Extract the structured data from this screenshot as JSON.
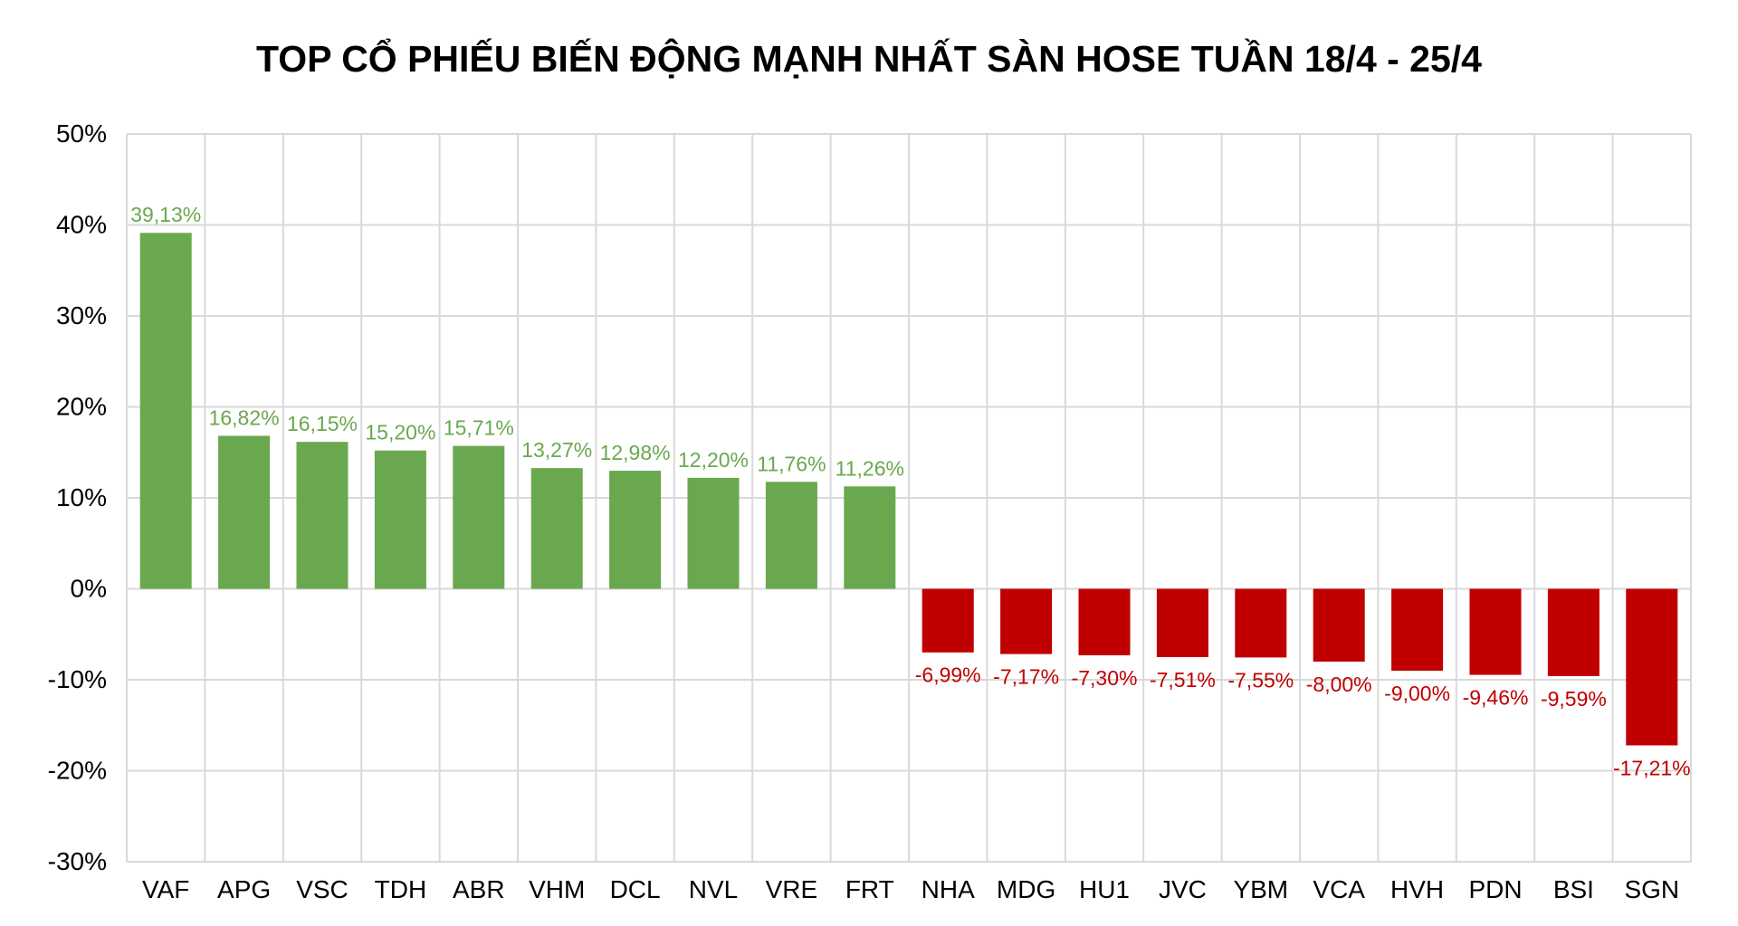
{
  "chart_data": {
    "type": "bar",
    "title": "TOP CỔ PHIẾU BIẾN ĐỘNG MẠNH NHẤT SÀN HOSE TUẦN 18/4 - 25/4",
    "categories": [
      "VAF",
      "APG",
      "VSC",
      "TDH",
      "ABR",
      "VHM",
      "DCL",
      "NVL",
      "VRE",
      "FRT",
      "NHA",
      "MDG",
      "HU1",
      "JVC",
      "YBM",
      "VCA",
      "HVH",
      "PDN",
      "BSI",
      "SGN"
    ],
    "values": [
      39.13,
      16.82,
      16.15,
      15.2,
      15.71,
      13.27,
      12.98,
      12.2,
      11.76,
      11.26,
      -6.99,
      -7.17,
      -7.3,
      -7.51,
      -7.55,
      -8.0,
      -9.0,
      -9.46,
      -9.59,
      -17.21
    ],
    "value_labels": [
      "39,13%",
      "16,82%",
      "16,15%",
      "15,20%",
      "15,71%",
      "13,27%",
      "12,98%",
      "12,20%",
      "11,76%",
      "11,26%",
      "-6,99%",
      "-7,17%",
      "-7,30%",
      "-7,51%",
      "-7,55%",
      "-8,00%",
      "-9,00%",
      "-9,46%",
      "-9,59%",
      "-17,21%"
    ],
    "xlabel": "",
    "ylabel": "",
    "ylim": [
      -30,
      50
    ],
    "yticks": [
      {
        "value": 50,
        "label": "50%"
      },
      {
        "value": 40,
        "label": "40%"
      },
      {
        "value": 30,
        "label": "30%"
      },
      {
        "value": 20,
        "label": "20%"
      },
      {
        "value": 10,
        "label": "10%"
      },
      {
        "value": 0,
        "label": "0%"
      },
      {
        "value": -10,
        "label": "-10%"
      },
      {
        "value": -20,
        "label": "-20%"
      },
      {
        "value": -30,
        "label": "-30%"
      }
    ],
    "grid": {
      "horizontal": true,
      "vertical": true,
      "color": "#d9d9d9"
    },
    "legend": {
      "visible": false
    },
    "colors": {
      "positive_bar": "#6aa84f",
      "negative_bar": "#c00000",
      "positive_label": "#6aa84f",
      "negative_label": "#c00000",
      "axis_text": "#000000",
      "background": "#ffffff"
    }
  }
}
